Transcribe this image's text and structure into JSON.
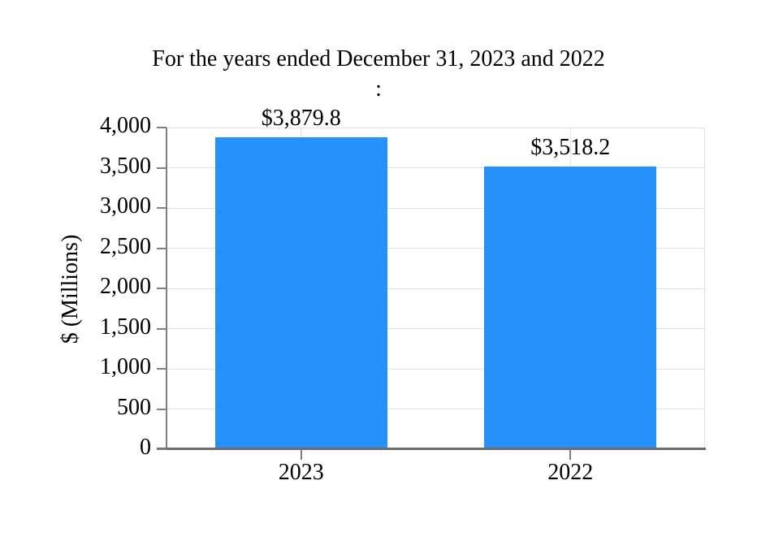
{
  "figure": {
    "title_line1": "For the years ended December 31, 2023 and 2022",
    "title_line2": ":"
  },
  "chart_data": {
    "type": "bar",
    "title": "For the years ended December 31, 2023 and 2022 :",
    "categories": [
      "2023",
      "2022"
    ],
    "values": [
      3879.8,
      3518.2
    ],
    "bar_value_labels": [
      "$3,879.8",
      "$3,518.2"
    ],
    "xlabel": "",
    "ylabel": "$ (Millions)",
    "ylim": [
      0,
      4000
    ],
    "yticks": [
      0,
      500,
      1000,
      1500,
      2000,
      2500,
      3000,
      3500,
      4000
    ],
    "ytick_labels": [
      "0",
      "500",
      "1,000",
      "1,500",
      "2,000",
      "2,500",
      "3,000",
      "3,500",
      "4,000"
    ],
    "grid": "on",
    "legend_position": "none",
    "colors": {
      "bar": "#2791FB",
      "gridline": "#E3E3E3",
      "axis": "#7F7F7F",
      "baseline": "#6B6B6B",
      "text": "#000000"
    }
  }
}
